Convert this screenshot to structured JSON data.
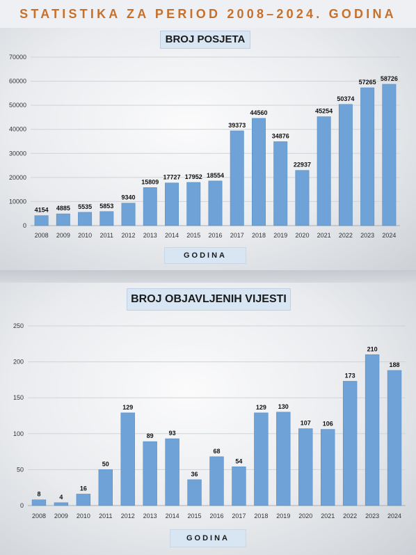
{
  "header": {
    "title": "STATISTIKA ZA PERIOD 2008–2024. GODINA"
  },
  "colors": {
    "bar": "#6fa2d6",
    "bar_edge": "#5b8fc4",
    "title_accent": "#c8702a",
    "grid": "#cfd3d8"
  },
  "chart_data": [
    {
      "type": "bar",
      "title": "BROJ POSJETA",
      "xlabel": "GODINA",
      "ylabel": "",
      "ylim": [
        0,
        70000
      ],
      "yticks": [
        0,
        10000,
        20000,
        30000,
        40000,
        50000,
        60000,
        70000
      ],
      "grid": true,
      "categories": [
        "2008",
        "2009",
        "2010",
        "2011",
        "2012",
        "2013",
        "2014",
        "2015",
        "2016",
        "2017",
        "2018",
        "2019",
        "2020",
        "2021",
        "2022",
        "2023",
        "2024"
      ],
      "values": [
        4154,
        4885,
        5535,
        5853,
        9340,
        15809,
        17727,
        17952,
        18554,
        39373,
        44560,
        34876,
        22937,
        45254,
        50374,
        57265,
        58726
      ]
    },
    {
      "type": "bar",
      "title": "BROJ OBJAVLJENIH VIJESTI",
      "xlabel": "GODINA",
      "ylabel": "",
      "ylim": [
        0,
        250
      ],
      "yticks": [
        0,
        50,
        100,
        150,
        200,
        250
      ],
      "grid": true,
      "categories": [
        "2008",
        "2009",
        "2010",
        "2011",
        "2012",
        "2013",
        "2014",
        "2015",
        "2016",
        "2017",
        "2018",
        "2019",
        "2020",
        "2021",
        "2022",
        "2023",
        "2024"
      ],
      "values": [
        8,
        4,
        16,
        50,
        129,
        89,
        93,
        36,
        68,
        54,
        129,
        130,
        107,
        106,
        173,
        210,
        188
      ]
    }
  ]
}
